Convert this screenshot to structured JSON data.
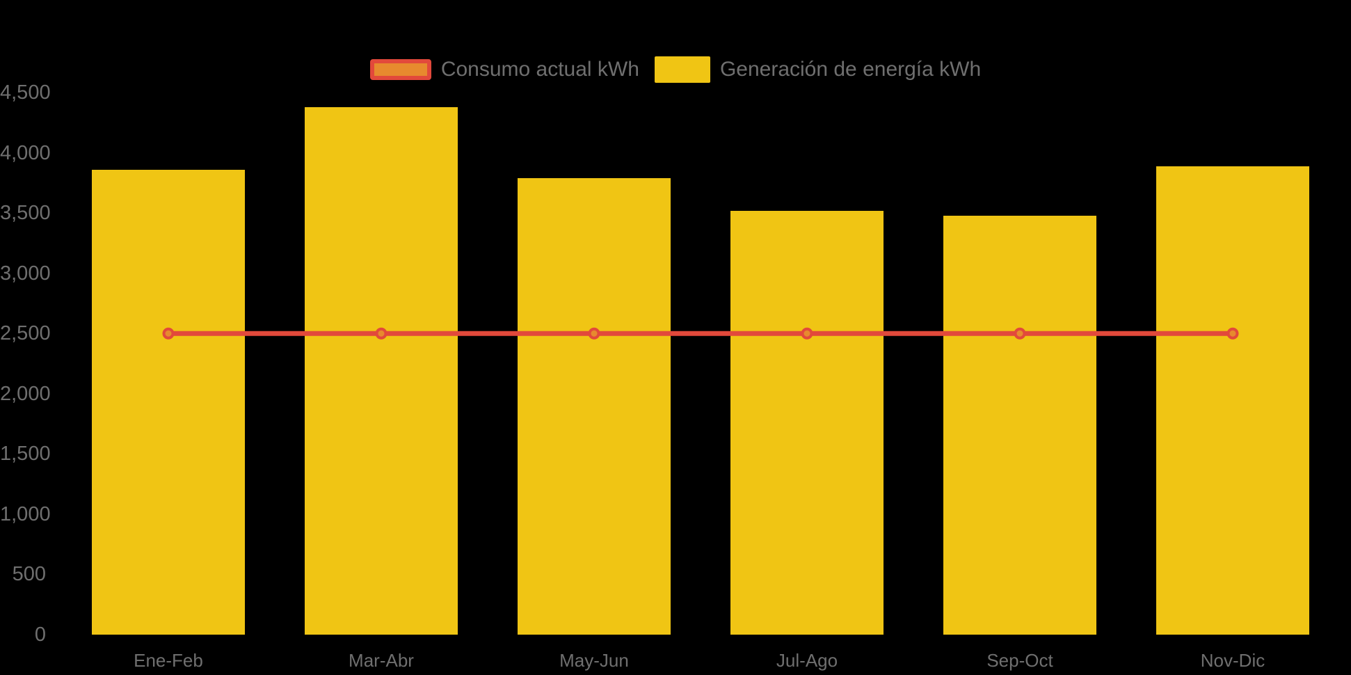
{
  "background": "#000000",
  "text_color": "#6F6F6F",
  "legend": {
    "items": [
      {
        "label": "Consumo actual kWh",
        "symbol": "line-swatch",
        "fill": "#E78A2E",
        "border": "#E2493B"
      },
      {
        "label": "Generación de energía kWh",
        "symbol": "bar-swatch",
        "fill": "#F0C514"
      }
    ]
  },
  "chart_data": {
    "type": "bar",
    "subtype": "bar-with-line-overlay",
    "categories": [
      "Ene-Feb",
      "Mar-Abr",
      "May-Jun",
      "Jul-Ago",
      "Sep-Oct",
      "Nov-Dic"
    ],
    "series": [
      {
        "name": "Generación de energía kWh",
        "type": "bar",
        "color": "#F0C514",
        "values": [
          3860,
          4380,
          3790,
          3520,
          3480,
          3890
        ]
      },
      {
        "name": "Consumo actual kWh",
        "type": "line",
        "color": "#E2493B",
        "marker_fill": "#E78A2E",
        "values": [
          2500,
          2500,
          2500,
          2500,
          2500,
          2500
        ]
      }
    ],
    "ylim": [
      0,
      4500
    ],
    "ytick_step": 500,
    "ytick_labels": [
      "0",
      "500",
      "1,000",
      "1,500",
      "2,000",
      "2,500",
      "3,000",
      "3,500",
      "4,000",
      "4,500"
    ],
    "grid": false,
    "legend_position": "top-center",
    "background": "#000000"
  }
}
